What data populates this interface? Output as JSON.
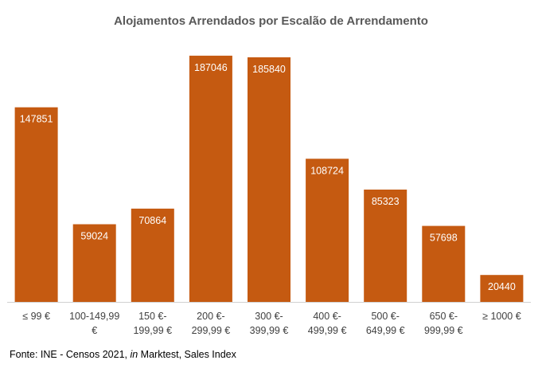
{
  "chart_data": {
    "type": "bar",
    "title": "Alojamentos Arrendados por Escalão de Arrendamento",
    "categories": [
      [
        "≤ 99 €"
      ],
      [
        "100-149,99",
        "€"
      ],
      [
        "150 €-",
        "199,99 €"
      ],
      [
        "200 €-",
        "299,99 €"
      ],
      [
        "300 €-",
        "399,99 €"
      ],
      [
        "400 €-",
        "499,99 €"
      ],
      [
        "500 €-",
        "649,99 €"
      ],
      [
        "650 €-",
        "999,99 €"
      ],
      [
        "≥ 1000 €"
      ]
    ],
    "values": [
      147851,
      59024,
      70864,
      187046,
      185840,
      108724,
      85323,
      57698,
      20440
    ],
    "xlabel": "",
    "ylabel": "",
    "ylim": [
      0,
      190000
    ],
    "bar_color": "#C55A11",
    "label_color": "#FFFFFF",
    "grid": false
  },
  "source": {
    "prefix": "Fonte: INE - Censos 2021, ",
    "italic": "in",
    "suffix": " Marktest, Sales Index"
  }
}
